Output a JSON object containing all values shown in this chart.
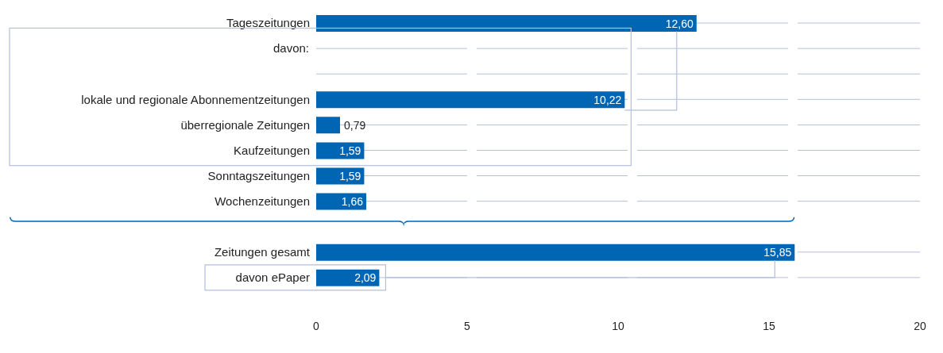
{
  "chart_data": {
    "type": "bar",
    "orientation": "horizontal",
    "annotations": [
      "davon:"
    ],
    "categories": [
      "Tageszeitungen",
      null,
      null,
      "lokale und regionale Abonnementzeitungen",
      "überregionale Zeitungen",
      "Kaufzeitungen",
      "Sonntagszeitungen",
      "Wochenzeitungen",
      null,
      "Zeitungen gesamt",
      "davon ePaper",
      null
    ],
    "values": [
      12.6,
      null,
      null,
      10.22,
      0.79,
      1.59,
      1.59,
      1.66,
      null,
      15.85,
      2.09,
      null
    ],
    "value_labels": [
      "12,60",
      null,
      null,
      "10,22",
      "0,79",
      "1,59",
      "1,59",
      "1,66",
      null,
      "15,85",
      "2,09",
      null
    ],
    "color": "#0066b3",
    "xlim": [
      0,
      20
    ],
    "xticks": [
      0,
      5,
      10,
      15,
      20
    ],
    "grid": "y"
  }
}
